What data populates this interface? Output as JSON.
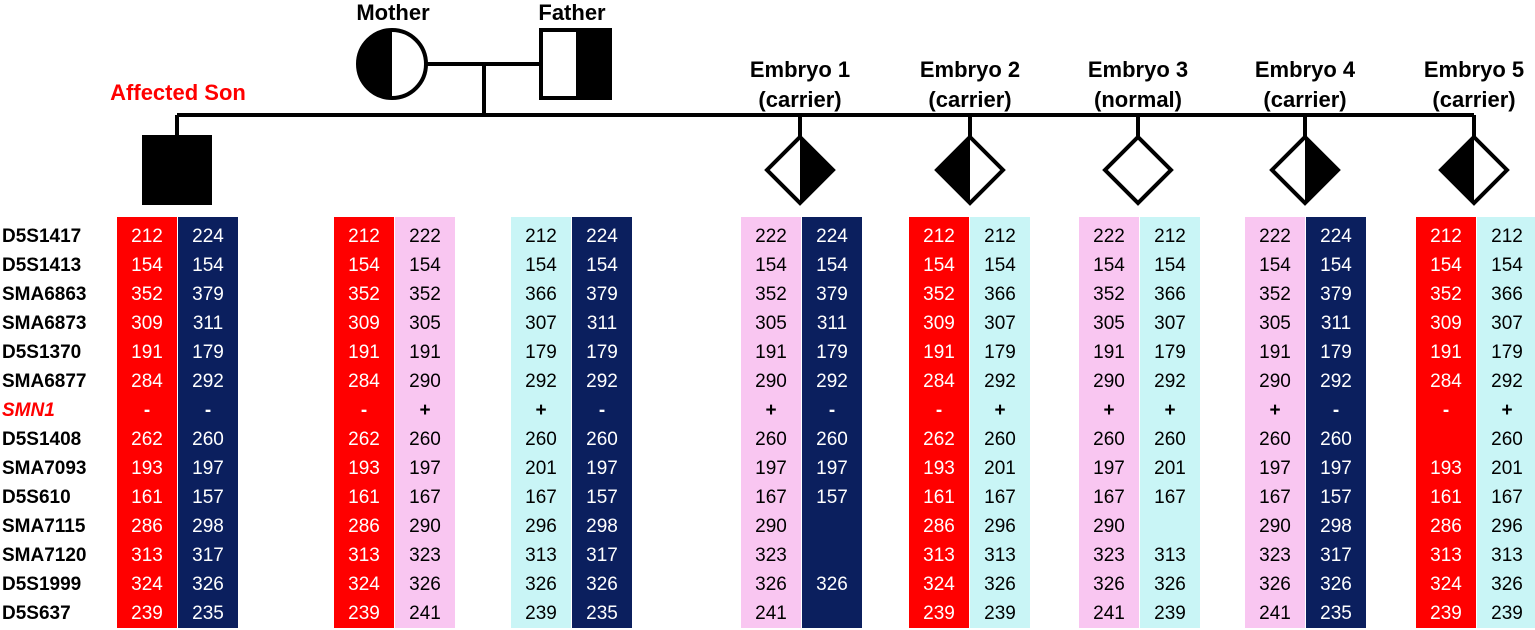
{
  "pedigree": {
    "mother_label": "Mother",
    "father_label": "Father",
    "son_label": "Affected Son",
    "embryos": [
      {
        "name": "Embryo 1",
        "status": "(carrier)",
        "fill": "right"
      },
      {
        "name": "Embryo 2",
        "status": "(carrier)",
        "fill": "left"
      },
      {
        "name": "Embryo 3",
        "status": "(normal)",
        "fill": "none"
      },
      {
        "name": "Embryo 4",
        "status": "(carrier)",
        "fill": "right"
      },
      {
        "name": "Embryo 5",
        "status": "(carrier)",
        "fill": "left"
      }
    ]
  },
  "colors": {
    "red": "#ff0000",
    "navy": "#0b1f5e",
    "pink": "#f9c6f1",
    "cyan": "#c9f5f6",
    "label_red": "#ff0000"
  },
  "markers": [
    "D5S1417",
    "D5S1413",
    "SMA6863",
    "SMA6873",
    "D5S1370",
    "SMA6877",
    "SMN1",
    "D5S1408",
    "SMA7093",
    "D5S610",
    "SMA7115",
    "SMA7120",
    "D5S1999",
    "D5S637"
  ],
  "highlighted_marker": "SMN1",
  "haplotype_columns": [
    {
      "name": "son-hap-1",
      "color": "red",
      "values": [
        "212",
        "154",
        "352",
        "309",
        "191",
        "284",
        "-",
        "262",
        "193",
        "161",
        "286",
        "313",
        "324",
        "239"
      ]
    },
    {
      "name": "son-hap-2",
      "color": "navy",
      "values": [
        "224",
        "154",
        "379",
        "311",
        "179",
        "292",
        "-",
        "260",
        "197",
        "157",
        "298",
        "317",
        "326",
        "235"
      ]
    },
    {
      "name": "mother-hap-1",
      "color": "red",
      "values": [
        "212",
        "154",
        "352",
        "309",
        "191",
        "284",
        "-",
        "262",
        "193",
        "161",
        "286",
        "313",
        "324",
        "239"
      ]
    },
    {
      "name": "mother-hap-2",
      "color": "pink",
      "values": [
        "222",
        "154",
        "352",
        "305",
        "191",
        "290",
        "+",
        "260",
        "197",
        "167",
        "290",
        "323",
        "326",
        "241"
      ]
    },
    {
      "name": "father-hap-1",
      "color": "cyan",
      "values": [
        "212",
        "154",
        "366",
        "307",
        "179",
        "292",
        "+",
        "260",
        "201",
        "167",
        "296",
        "313",
        "326",
        "239"
      ]
    },
    {
      "name": "father-hap-2",
      "color": "navy",
      "values": [
        "224",
        "154",
        "379",
        "311",
        "179",
        "292",
        "-",
        "260",
        "197",
        "157",
        "298",
        "317",
        "326",
        "235"
      ]
    },
    {
      "name": "embryo1-hap-1",
      "color": "pink",
      "values": [
        "222",
        "154",
        "352",
        "305",
        "191",
        "290",
        "+",
        "260",
        "197",
        "167",
        "290",
        "323",
        "326",
        "241"
      ]
    },
    {
      "name": "embryo1-hap-2",
      "color": "navy",
      "values": [
        "224",
        "154",
        "379",
        "311",
        "179",
        "292",
        "-",
        "260",
        "197",
        "157",
        "",
        "",
        "326",
        ""
      ]
    },
    {
      "name": "embryo2-hap-1",
      "color": "red",
      "values": [
        "212",
        "154",
        "352",
        "309",
        "191",
        "284",
        "-",
        "262",
        "193",
        "161",
        "286",
        "313",
        "324",
        "239"
      ]
    },
    {
      "name": "embryo2-hap-2",
      "color": "cyan",
      "values": [
        "212",
        "154",
        "366",
        "307",
        "179",
        "292",
        "+",
        "260",
        "201",
        "167",
        "296",
        "313",
        "326",
        "239"
      ]
    },
    {
      "name": "embryo3-hap-1",
      "color": "pink",
      "values": [
        "222",
        "154",
        "352",
        "305",
        "191",
        "290",
        "+",
        "260",
        "197",
        "167",
        "290",
        "323",
        "326",
        "241"
      ]
    },
    {
      "name": "embryo3-hap-2",
      "color": "cyan",
      "values": [
        "212",
        "154",
        "366",
        "307",
        "179",
        "292",
        "+",
        "260",
        "201",
        "167",
        "",
        "313",
        "326",
        "239"
      ]
    },
    {
      "name": "embryo4-hap-1",
      "color": "pink",
      "values": [
        "222",
        "154",
        "352",
        "305",
        "191",
        "290",
        "+",
        "260",
        "197",
        "167",
        "290",
        "323",
        "326",
        "241"
      ]
    },
    {
      "name": "embryo4-hap-2",
      "color": "navy",
      "values": [
        "224",
        "154",
        "379",
        "311",
        "179",
        "292",
        "-",
        "260",
        "197",
        "157",
        "298",
        "317",
        "326",
        "235"
      ]
    },
    {
      "name": "embryo5-hap-1",
      "color": "red",
      "values": [
        "212",
        "154",
        "352",
        "309",
        "191",
        "284",
        "-",
        "",
        "193",
        "161",
        "286",
        "313",
        "324",
        "239"
      ]
    },
    {
      "name": "embryo5-hap-2",
      "color": "cyan",
      "values": [
        "212",
        "154",
        "366",
        "307",
        "179",
        "292",
        "+",
        "260",
        "201",
        "167",
        "296",
        "313",
        "326",
        "239"
      ]
    }
  ]
}
